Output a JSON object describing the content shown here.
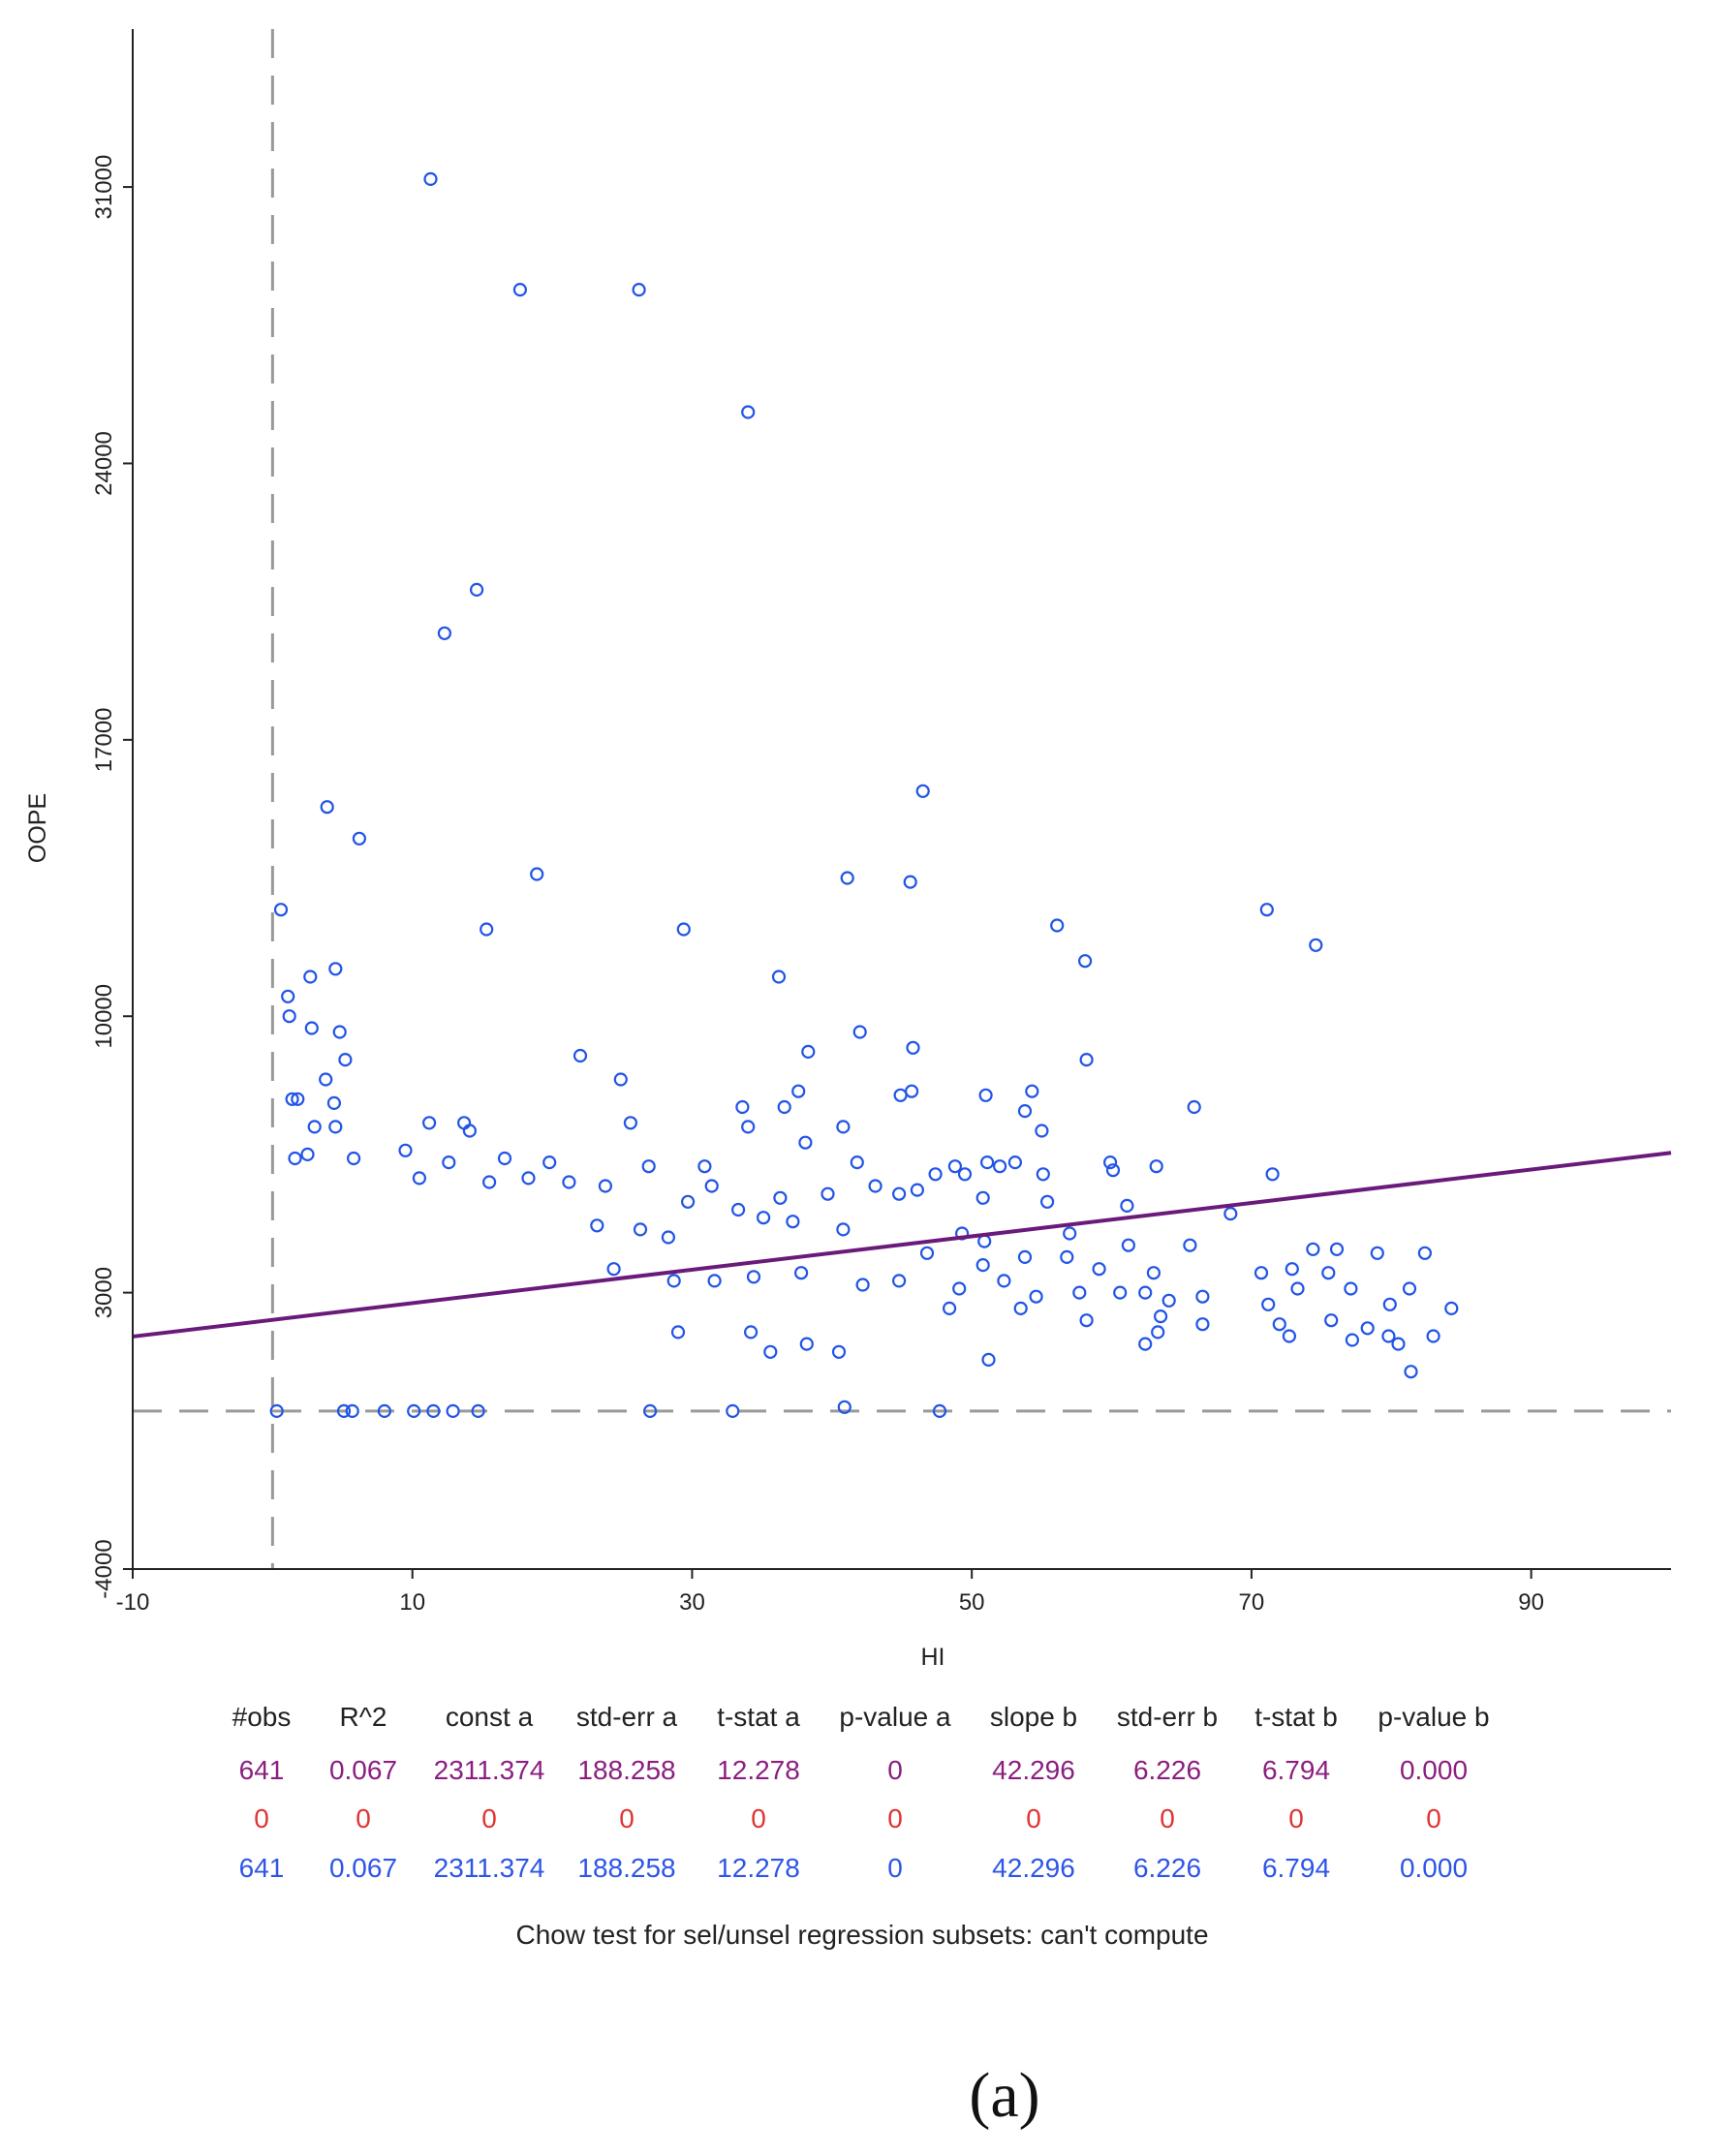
{
  "chart_data": {
    "type": "scatter",
    "title": "",
    "xlabel": "HI",
    "ylabel": "OOPE",
    "xlim": [
      -10,
      100
    ],
    "ylim": [
      -4000,
      35000
    ],
    "x_ticks": [
      "-10",
      "10",
      "30",
      "50",
      "70",
      "90"
    ],
    "y_ticks": [
      "-4000",
      "3000",
      "10000",
      "17000",
      "24000",
      "31000"
    ],
    "grid": false,
    "reference_lines": {
      "vertical_x": 0,
      "horizontal_y": 0
    },
    "regression": {
      "intercept": 2311.374,
      "slope": 42.296,
      "color": "#6a1a7a"
    },
    "point_color": "#2255e6",
    "series": [
      {
        "name": "observations",
        "points": [
          [
            11.3,
            31200
          ],
          [
            17.7,
            28400
          ],
          [
            26.2,
            28400
          ],
          [
            34.0,
            25300
          ],
          [
            14.6,
            20800
          ],
          [
            12.3,
            19700
          ],
          [
            46.5,
            15700
          ],
          [
            3.9,
            15300
          ],
          [
            6.2,
            14500
          ],
          [
            18.9,
            13600
          ],
          [
            41.1,
            13500
          ],
          [
            45.6,
            13400
          ],
          [
            0.6,
            12700
          ],
          [
            15.3,
            12200
          ],
          [
            29.4,
            12200
          ],
          [
            56.1,
            12300
          ],
          [
            71.1,
            12700
          ],
          [
            74.6,
            11800
          ],
          [
            58.1,
            11400
          ],
          [
            36.2,
            11000
          ],
          [
            2.7,
            11000
          ],
          [
            4.5,
            11200
          ],
          [
            1.1,
            10500
          ],
          [
            1.2,
            10000
          ],
          [
            2.8,
            9700
          ],
          [
            4.8,
            9600
          ],
          [
            42.0,
            9600
          ],
          [
            45.8,
            9200
          ],
          [
            38.3,
            9100
          ],
          [
            22.0,
            9000
          ],
          [
            58.2,
            8900
          ],
          [
            5.2,
            8900
          ],
          [
            3.8,
            8400
          ],
          [
            24.9,
            8400
          ],
          [
            37.6,
            8100
          ],
          [
            44.9,
            8000
          ],
          [
            54.3,
            8100
          ],
          [
            45.7,
            8100
          ],
          [
            51.0,
            8000
          ],
          [
            1.4,
            7900
          ],
          [
            1.8,
            7900
          ],
          [
            4.4,
            7800
          ],
          [
            33.6,
            7700
          ],
          [
            36.6,
            7700
          ],
          [
            65.9,
            7700
          ],
          [
            53.8,
            7600
          ],
          [
            25.6,
            7300
          ],
          [
            11.2,
            7300
          ],
          [
            13.7,
            7300
          ],
          [
            3.0,
            7200
          ],
          [
            4.5,
            7200
          ],
          [
            40.8,
            7200
          ],
          [
            14.1,
            7100
          ],
          [
            55.0,
            7100
          ],
          [
            34.0,
            7200
          ],
          [
            38.1,
            6800
          ],
          [
            9.5,
            6600
          ],
          [
            2.5,
            6500
          ],
          [
            1.6,
            6400
          ],
          [
            5.8,
            6400
          ],
          [
            12.6,
            6300
          ],
          [
            16.6,
            6400
          ],
          [
            19.8,
            6300
          ],
          [
            26.9,
            6200
          ],
          [
            30.9,
            6200
          ],
          [
            41.8,
            6300
          ],
          [
            48.8,
            6200
          ],
          [
            51.1,
            6300
          ],
          [
            52.0,
            6200
          ],
          [
            53.1,
            6300
          ],
          [
            59.9,
            6300
          ],
          [
            63.2,
            6200
          ],
          [
            71.5,
            6000
          ],
          [
            47.4,
            6000
          ],
          [
            49.5,
            6000
          ],
          [
            55.1,
            6000
          ],
          [
            60.1,
            6100
          ],
          [
            46.1,
            5600
          ],
          [
            43.1,
            5700
          ],
          [
            44.8,
            5500
          ],
          [
            10.5,
            5900
          ],
          [
            15.5,
            5800
          ],
          [
            18.3,
            5900
          ],
          [
            21.2,
            5800
          ],
          [
            23.8,
            5700
          ],
          [
            29.7,
            5300
          ],
          [
            31.4,
            5700
          ],
          [
            36.3,
            5400
          ],
          [
            39.7,
            5500
          ],
          [
            50.8,
            5400
          ],
          [
            55.4,
            5300
          ],
          [
            61.1,
            5200
          ],
          [
            68.5,
            5000
          ],
          [
            33.3,
            5100
          ],
          [
            35.1,
            4900
          ],
          [
            37.2,
            4800
          ],
          [
            40.8,
            4600
          ],
          [
            23.2,
            4700
          ],
          [
            26.3,
            4600
          ],
          [
            28.3,
            4400
          ],
          [
            49.3,
            4500
          ],
          [
            50.9,
            4300
          ],
          [
            57.0,
            4500
          ],
          [
            61.2,
            4200
          ],
          [
            65.6,
            4200
          ],
          [
            74.4,
            4100
          ],
          [
            76.1,
            4100
          ],
          [
            79.0,
            4000
          ],
          [
            82.4,
            4000
          ],
          [
            46.8,
            4000
          ],
          [
            50.8,
            3700
          ],
          [
            53.8,
            3900
          ],
          [
            56.8,
            3900
          ],
          [
            59.1,
            3600
          ],
          [
            63.0,
            3500
          ],
          [
            70.7,
            3500
          ],
          [
            72.9,
            3600
          ],
          [
            75.5,
            3500
          ],
          [
            24.4,
            3600
          ],
          [
            28.7,
            3300
          ],
          [
            31.6,
            3300
          ],
          [
            34.4,
            3400
          ],
          [
            37.8,
            3500
          ],
          [
            42.2,
            3200
          ],
          [
            44.8,
            3300
          ],
          [
            49.1,
            3100
          ],
          [
            52.3,
            3300
          ],
          [
            54.6,
            2900
          ],
          [
            57.7,
            3000
          ],
          [
            60.6,
            3000
          ],
          [
            62.4,
            3000
          ],
          [
            64.1,
            2800
          ],
          [
            66.5,
            2900
          ],
          [
            71.2,
            2700
          ],
          [
            73.3,
            3100
          ],
          [
            77.1,
            3100
          ],
          [
            79.9,
            2700
          ],
          [
            81.3,
            3100
          ],
          [
            84.3,
            2600
          ],
          [
            48.4,
            2600
          ],
          [
            53.5,
            2600
          ],
          [
            58.2,
            2300
          ],
          [
            63.5,
            2400
          ],
          [
            66.5,
            2200
          ],
          [
            72.0,
            2200
          ],
          [
            75.7,
            2300
          ],
          [
            78.3,
            2100
          ],
          [
            80.5,
            1700
          ],
          [
            83.0,
            1900
          ],
          [
            72.7,
            1900
          ],
          [
            63.3,
            2000
          ],
          [
            62.4,
            1700
          ],
          [
            77.2,
            1800
          ],
          [
            79.8,
            1900
          ],
          [
            81.4,
            1000
          ],
          [
            51.2,
            1300
          ],
          [
            47.7,
            0
          ],
          [
            40.9,
            100
          ],
          [
            32.9,
            0
          ],
          [
            27.0,
            0
          ],
          [
            40.5,
            1500
          ],
          [
            38.2,
            1700
          ],
          [
            35.6,
            1500
          ],
          [
            34.2,
            2000
          ],
          [
            29.0,
            2000
          ],
          [
            0.3,
            0
          ],
          [
            5.1,
            0
          ],
          [
            5.7,
            0
          ],
          [
            8.0,
            0
          ],
          [
            10.1,
            0
          ],
          [
            11.5,
            0
          ],
          [
            12.9,
            0
          ],
          [
            14.7,
            0
          ]
        ]
      }
    ]
  },
  "stats_table": {
    "headers": [
      "#obs",
      "R^2",
      "const a",
      "std-err a",
      "t-stat a",
      "p-value a",
      "slope b",
      "std-err b",
      "t-stat b",
      "p-value b"
    ],
    "rows": [
      {
        "color": "#8b1e7e",
        "values": [
          "641",
          "0.067",
          "2311.374",
          "188.258",
          "12.278",
          "0",
          "42.296",
          "6.226",
          "6.794",
          "0.000"
        ]
      },
      {
        "color": "#e23333",
        "values": [
          "0",
          "0",
          "0",
          "0",
          "0",
          "0",
          "0",
          "0",
          "0",
          "0"
        ]
      },
      {
        "color": "#2d55e8",
        "values": [
          "641",
          "0.067",
          "2311.374",
          "188.258",
          "12.278",
          "0",
          "42.296",
          "6.226",
          "6.794",
          "0.000"
        ]
      }
    ],
    "chow_text": "Chow test for sel/unsel regression subsets: can't compute"
  },
  "caption": "(a)"
}
